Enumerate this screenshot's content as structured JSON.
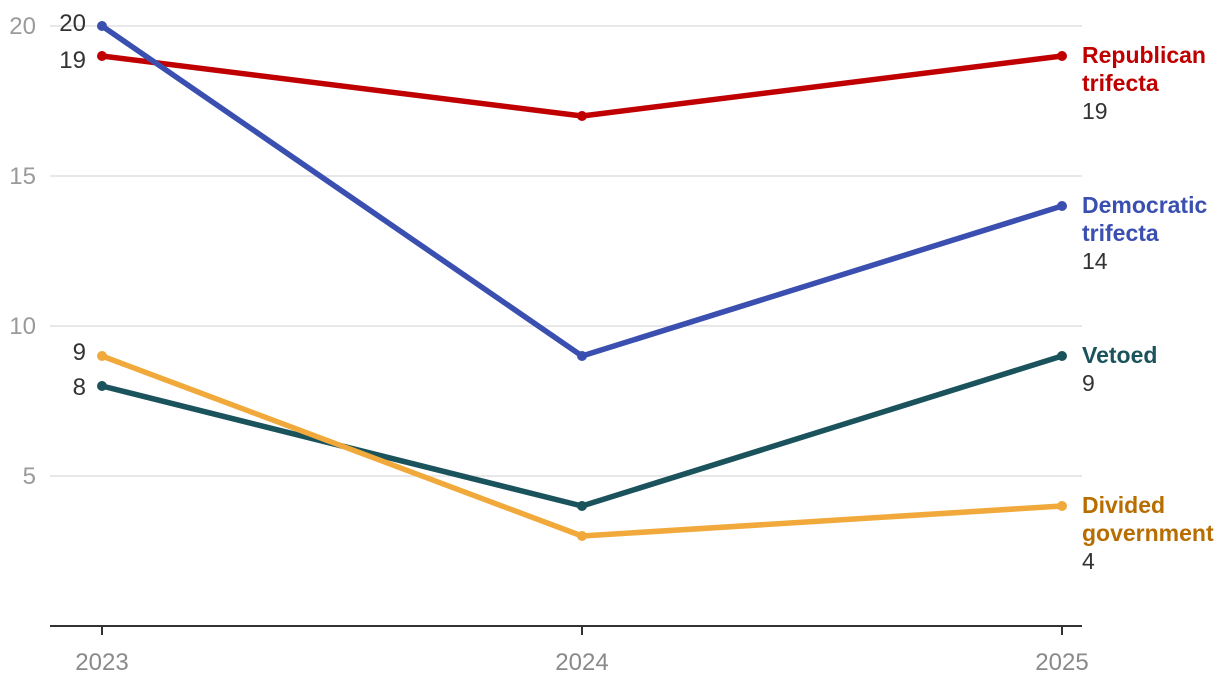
{
  "chart_data": {
    "type": "line",
    "x": [
      "2023",
      "2024",
      "2025"
    ],
    "ylim": [
      0,
      20
    ],
    "yticks": [
      5,
      10,
      15,
      20
    ],
    "ytick_labels": [
      "5",
      "10",
      "15",
      "20"
    ],
    "grid": true,
    "legend": "inline-right",
    "series": [
      {
        "name": "Republican trifecta",
        "label_lines": [
          "Republican",
          "trifecta"
        ],
        "values": [
          19,
          17,
          19
        ],
        "start_label": "19",
        "end_label": "19",
        "color": "#c00000",
        "label_color": "#c00000"
      },
      {
        "name": "Democratic trifecta",
        "label_lines": [
          "Democratic",
          "trifecta"
        ],
        "values": [
          20,
          9,
          14
        ],
        "start_label": "20",
        "end_label": "14",
        "color": "#3a4fb0",
        "label_color": "#3a4fb0"
      },
      {
        "name": "Vetoed",
        "label_lines": [
          "Vetoed"
        ],
        "values": [
          8,
          4,
          9
        ],
        "start_label": "8",
        "end_label": "9",
        "color": "#1a535c",
        "label_color": "#1a535c"
      },
      {
        "name": "Divided government",
        "label_lines": [
          "Divided",
          "government"
        ],
        "values": [
          9,
          3,
          4
        ],
        "start_label": "9",
        "end_label": "4",
        "color": "#f0a93a",
        "label_color": "#b76d00"
      }
    ]
  }
}
